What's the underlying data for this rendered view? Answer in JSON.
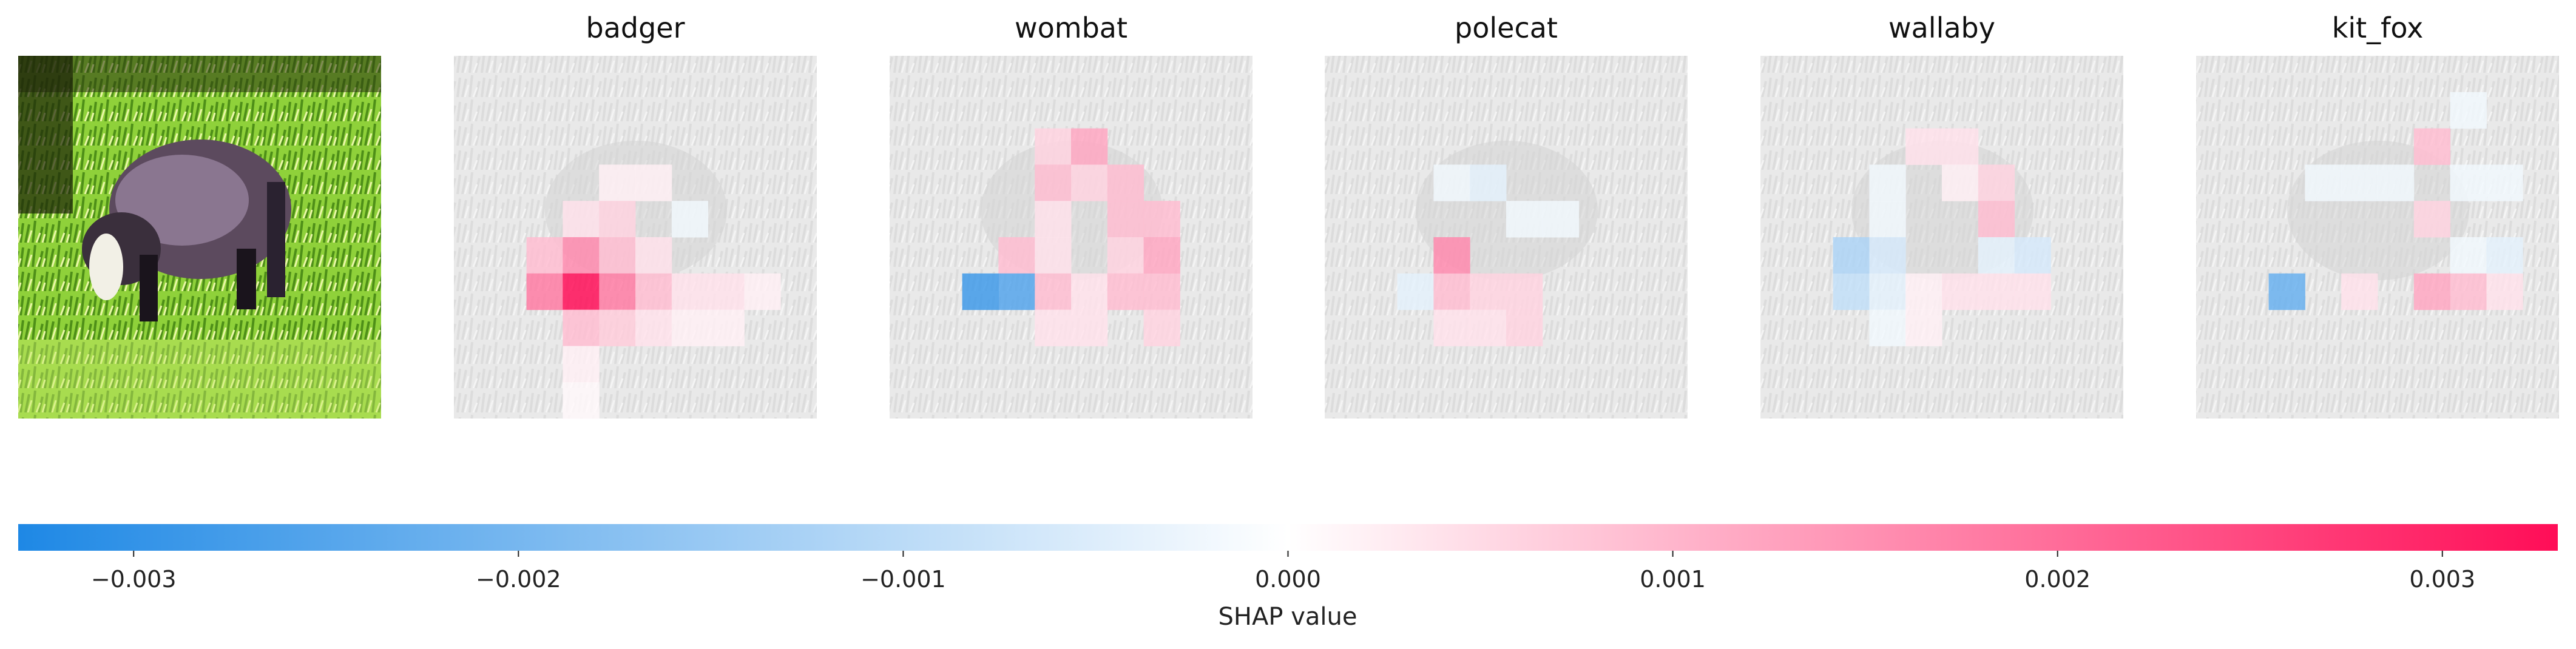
{
  "chart_data": {
    "type": "heatmap",
    "original_image_label": "",
    "panels": [
      {
        "title": "badger"
      },
      {
        "title": "wombat"
      },
      {
        "title": "polecat"
      },
      {
        "title": "wallaby"
      },
      {
        "title": "kit_fox"
      }
    ],
    "grid_size": 10,
    "colorbar": {
      "label": "SHAP value",
      "range": [
        -0.0033,
        0.0033
      ],
      "ticks": [
        -0.003,
        -0.002,
        -0.001,
        0.0,
        0.001,
        0.002,
        0.003
      ],
      "tick_labels": [
        "−0.003",
        "−0.002",
        "−0.001",
        "0.000",
        "0.001",
        "0.002",
        "0.003"
      ],
      "negative_color": "#1E88E5",
      "positive_color": "#FF0D57"
    },
    "shap_values": [
      [
        [
          0,
          0,
          0,
          0,
          0,
          0,
          0,
          0,
          0,
          0
        ],
        [
          0,
          0,
          0,
          0,
          0,
          0,
          0,
          0,
          0,
          0
        ],
        [
          0,
          0,
          0,
          0,
          0,
          0,
          0,
          0,
          0,
          0
        ],
        [
          0,
          0,
          0,
          0,
          0.0002,
          0.0002,
          0,
          0,
          0,
          0
        ],
        [
          0,
          0,
          0,
          0.0004,
          0.0006,
          0,
          -0.0002,
          0,
          0,
          0
        ],
        [
          0,
          0,
          0.0009,
          0.0016,
          0.0009,
          0.0004,
          0,
          0,
          0,
          0
        ],
        [
          0,
          0,
          0.0018,
          0.0033,
          0.0018,
          0.0009,
          0.0004,
          0.0004,
          0.0002,
          0
        ],
        [
          0,
          0,
          0,
          0.0009,
          0.0007,
          0.0004,
          0.0002,
          0.0002,
          0,
          0
        ],
        [
          0,
          0,
          0,
          0.0002,
          0,
          0,
          0,
          0,
          0,
          0
        ],
        [
          0,
          0,
          0,
          0.0001,
          0,
          0,
          0,
          0,
          0,
          0
        ]
      ],
      [
        [
          0,
          0,
          0,
          0,
          0,
          0,
          0,
          0,
          0,
          0
        ],
        [
          0,
          0,
          0,
          0,
          0,
          0,
          0,
          0,
          0,
          0
        ],
        [
          0,
          0,
          0,
          0,
          0.0006,
          0.0012,
          0,
          0,
          0,
          0
        ],
        [
          0,
          0,
          0,
          0,
          0.0009,
          0.0006,
          0.0009,
          0,
          0,
          0
        ],
        [
          0,
          0,
          0,
          0,
          0.0004,
          0,
          0.0009,
          0.0009,
          0,
          0
        ],
        [
          0,
          0,
          0,
          0.0009,
          0.0004,
          0,
          0.0006,
          0.0012,
          0,
          0
        ],
        [
          0,
          0,
          -0.0028,
          -0.0025,
          0.0009,
          0.0004,
          0.0009,
          0.0009,
          0,
          0
        ],
        [
          0,
          0,
          0,
          0,
          0.0004,
          0.0004,
          0,
          0.0006,
          0,
          0
        ],
        [
          0,
          0,
          0,
          0,
          0,
          0,
          0,
          0,
          0,
          0
        ],
        [
          0,
          0,
          0,
          0,
          0,
          0,
          0,
          0,
          0,
          0
        ]
      ],
      [
        [
          0,
          0,
          0,
          0,
          0,
          0,
          0,
          0,
          0,
          0
        ],
        [
          0,
          0,
          0,
          0,
          0,
          0,
          0,
          0,
          0,
          0
        ],
        [
          0,
          0,
          0,
          0,
          0,
          0,
          0,
          0,
          0,
          0
        ],
        [
          0,
          0,
          0,
          -0.0002,
          -0.0004,
          0,
          0,
          0,
          0,
          0
        ],
        [
          0,
          0,
          0,
          0,
          0,
          -0.0002,
          -0.0002,
          0,
          0,
          0
        ],
        [
          0,
          0,
          0,
          0.0016,
          0,
          0,
          0,
          0,
          0,
          0
        ],
        [
          0,
          0,
          -0.0004,
          0.0009,
          0.0006,
          0.0006,
          0,
          0,
          0,
          0
        ],
        [
          0,
          0,
          0,
          0.0004,
          0.0004,
          0.0006,
          0,
          0,
          0,
          0
        ],
        [
          0,
          0,
          0,
          0,
          0,
          0,
          0,
          0,
          0,
          0
        ],
        [
          0,
          0,
          0,
          0,
          0,
          0,
          0,
          0,
          0,
          0
        ]
      ],
      [
        [
          0,
          0,
          0,
          0,
          0,
          0,
          0,
          0,
          0,
          0
        ],
        [
          0,
          0,
          0,
          0,
          0,
          0,
          0,
          0,
          0,
          0
        ],
        [
          0,
          0,
          0,
          0,
          0.0004,
          0.0004,
          0,
          0,
          0,
          0
        ],
        [
          0,
          0,
          0,
          -0.0002,
          0,
          0.0002,
          0.0006,
          0,
          0,
          0
        ],
        [
          0,
          0,
          0,
          -0.0002,
          0,
          0,
          0.0009,
          0,
          0,
          0
        ],
        [
          0,
          0,
          -0.0012,
          -0.0006,
          0,
          0,
          -0.0004,
          -0.0006,
          0,
          0
        ],
        [
          0,
          0,
          -0.0009,
          -0.0004,
          0.0002,
          0.0004,
          0.0004,
          0.0004,
          0,
          0
        ],
        [
          0,
          0,
          0,
          -0.0002,
          0.0002,
          0,
          0,
          0,
          0,
          0
        ],
        [
          0,
          0,
          0,
          0,
          0,
          0,
          0,
          0,
          0,
          0
        ],
        [
          0,
          0,
          0,
          0,
          0,
          0,
          0,
          0,
          0,
          0
        ]
      ],
      [
        [
          0,
          0,
          0,
          0,
          0,
          0,
          0,
          0,
          0,
          0
        ],
        [
          0,
          0,
          0,
          0,
          0,
          0,
          0,
          -0.0002,
          0,
          0
        ],
        [
          0,
          0,
          0,
          0,
          0,
          0,
          0.0009,
          0,
          0,
          0
        ],
        [
          0,
          0,
          0,
          -0.0002,
          -0.0002,
          -0.0002,
          0,
          -0.0002,
          -0.0002,
          0
        ],
        [
          0,
          0,
          0,
          0,
          0,
          0,
          0.0006,
          0,
          0,
          0
        ],
        [
          0,
          0,
          0,
          0,
          0,
          0,
          0,
          -0.0002,
          -0.0004,
          0
        ],
        [
          0,
          0,
          -0.0022,
          0,
          0.0004,
          0,
          0.0012,
          0.0009,
          0.0004,
          0
        ],
        [
          0,
          0,
          0,
          0,
          0,
          0,
          0,
          0,
          0,
          0
        ],
        [
          0,
          0,
          0,
          0,
          0,
          0,
          0,
          0,
          0,
          0
        ],
        [
          0,
          0,
          0,
          0,
          0,
          0,
          0,
          0,
          0,
          0
        ]
      ]
    ]
  }
}
